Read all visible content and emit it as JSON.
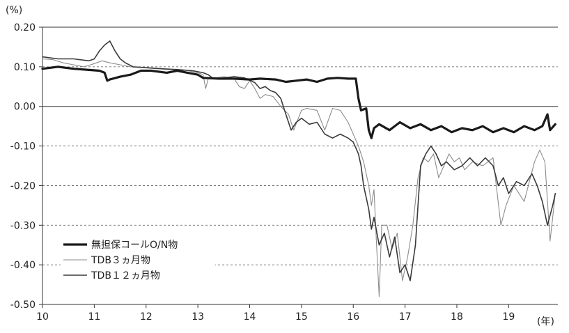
{
  "chart_data": {
    "type": "line",
    "title": "",
    "y_unit_label": "(%)",
    "x_unit_label": "(年)",
    "ylim": [
      -0.5,
      0.2
    ],
    "xlim": [
      10,
      19.95
    ],
    "y_ticks": [
      "0.20",
      "0.10",
      "0.00",
      "-0.10",
      "-0.20",
      "-0.30",
      "-0.40",
      "-0.50"
    ],
    "y_tick_values": [
      0.2,
      0.1,
      0.0,
      -0.1,
      -0.2,
      -0.3,
      -0.4,
      -0.5
    ],
    "x_ticks": [
      "10",
      "11",
      "12",
      "13",
      "14",
      "15",
      "16",
      "17",
      "18",
      "19"
    ],
    "x_tick_values": [
      10,
      11,
      12,
      13,
      14,
      15,
      16,
      17,
      18,
      19
    ],
    "grid": "horizontal dashed",
    "legend_position": "bottom-left",
    "series": [
      {
        "name": "無担保コールO/N物",
        "color": "#1a1a1a",
        "style": "thick",
        "points": [
          [
            10.0,
            0.095
          ],
          [
            10.3,
            0.1
          ],
          [
            10.6,
            0.095
          ],
          [
            10.9,
            0.092
          ],
          [
            11.1,
            0.09
          ],
          [
            11.2,
            0.085
          ],
          [
            11.25,
            0.065
          ],
          [
            11.3,
            0.068
          ],
          [
            11.5,
            0.075
          ],
          [
            11.7,
            0.08
          ],
          [
            11.9,
            0.09
          ],
          [
            12.1,
            0.09
          ],
          [
            12.4,
            0.085
          ],
          [
            12.6,
            0.09
          ],
          [
            12.8,
            0.085
          ],
          [
            13.0,
            0.08
          ],
          [
            13.1,
            0.072
          ],
          [
            13.4,
            0.07
          ],
          [
            13.7,
            0.07
          ],
          [
            14.0,
            0.068
          ],
          [
            14.2,
            0.07
          ],
          [
            14.5,
            0.068
          ],
          [
            14.7,
            0.062
          ],
          [
            14.9,
            0.065
          ],
          [
            15.1,
            0.068
          ],
          [
            15.3,
            0.062
          ],
          [
            15.5,
            0.07
          ],
          [
            15.7,
            0.072
          ],
          [
            15.9,
            0.07
          ],
          [
            16.05,
            0.07
          ],
          [
            16.1,
            0.02
          ],
          [
            16.15,
            -0.01
          ],
          [
            16.25,
            -0.005
          ],
          [
            16.3,
            -0.06
          ],
          [
            16.35,
            -0.08
          ],
          [
            16.4,
            -0.055
          ],
          [
            16.5,
            -0.045
          ],
          [
            16.7,
            -0.06
          ],
          [
            16.9,
            -0.04
          ],
          [
            17.1,
            -0.055
          ],
          [
            17.3,
            -0.045
          ],
          [
            17.5,
            -0.06
          ],
          [
            17.7,
            -0.05
          ],
          [
            17.9,
            -0.065
          ],
          [
            18.1,
            -0.055
          ],
          [
            18.3,
            -0.06
          ],
          [
            18.5,
            -0.05
          ],
          [
            18.7,
            -0.065
          ],
          [
            18.9,
            -0.055
          ],
          [
            19.1,
            -0.065
          ],
          [
            19.3,
            -0.05
          ],
          [
            19.5,
            -0.06
          ],
          [
            19.65,
            -0.05
          ],
          [
            19.75,
            -0.02
          ],
          [
            19.8,
            -0.06
          ],
          [
            19.9,
            -0.045
          ]
        ]
      },
      {
        "name": "TDB３ヵ月物",
        "color": "#8c8c8c",
        "style": "thin",
        "points": [
          [
            10.0,
            0.12
          ],
          [
            10.2,
            0.118
          ],
          [
            10.4,
            0.11
          ],
          [
            10.6,
            0.105
          ],
          [
            10.8,
            0.1
          ],
          [
            11.0,
            0.108
          ],
          [
            11.15,
            0.115
          ],
          [
            11.3,
            0.11
          ],
          [
            11.5,
            0.105
          ],
          [
            11.7,
            0.1
          ],
          [
            11.9,
            0.098
          ],
          [
            12.2,
            0.095
          ],
          [
            12.5,
            0.093
          ],
          [
            12.8,
            0.09
          ],
          [
            13.0,
            0.085
          ],
          [
            13.1,
            0.08
          ],
          [
            13.15,
            0.045
          ],
          [
            13.2,
            0.07
          ],
          [
            13.5,
            0.075
          ],
          [
            13.7,
            0.07
          ],
          [
            13.8,
            0.05
          ],
          [
            13.9,
            0.045
          ],
          [
            14.0,
            0.065
          ],
          [
            14.1,
            0.045
          ],
          [
            14.2,
            0.02
          ],
          [
            14.3,
            0.03
          ],
          [
            14.45,
            0.025
          ],
          [
            14.6,
            0.0
          ],
          [
            14.75,
            -0.02
          ],
          [
            14.85,
            -0.06
          ],
          [
            15.0,
            -0.01
          ],
          [
            15.1,
            -0.005
          ],
          [
            15.3,
            -0.01
          ],
          [
            15.45,
            -0.06
          ],
          [
            15.6,
            -0.005
          ],
          [
            15.75,
            -0.01
          ],
          [
            15.9,
            -0.04
          ],
          [
            16.0,
            -0.07
          ],
          [
            16.1,
            -0.1
          ],
          [
            16.2,
            -0.14
          ],
          [
            16.3,
            -0.2
          ],
          [
            16.35,
            -0.25
          ],
          [
            16.4,
            -0.21
          ],
          [
            16.45,
            -0.35
          ],
          [
            16.5,
            -0.48
          ],
          [
            16.55,
            -0.3
          ],
          [
            16.65,
            -0.3
          ],
          [
            16.75,
            -0.36
          ],
          [
            16.85,
            -0.32
          ],
          [
            16.95,
            -0.44
          ],
          [
            17.05,
            -0.38
          ],
          [
            17.15,
            -0.3
          ],
          [
            17.25,
            -0.18
          ],
          [
            17.35,
            -0.13
          ],
          [
            17.45,
            -0.14
          ],
          [
            17.55,
            -0.12
          ],
          [
            17.65,
            -0.18
          ],
          [
            17.75,
            -0.15
          ],
          [
            17.85,
            -0.12
          ],
          [
            17.95,
            -0.14
          ],
          [
            18.05,
            -0.13
          ],
          [
            18.15,
            -0.16
          ],
          [
            18.3,
            -0.14
          ],
          [
            18.5,
            -0.15
          ],
          [
            18.7,
            -0.13
          ],
          [
            18.85,
            -0.3
          ],
          [
            18.95,
            -0.25
          ],
          [
            19.1,
            -0.2
          ],
          [
            19.3,
            -0.24
          ],
          [
            19.5,
            -0.14
          ],
          [
            19.6,
            -0.11
          ],
          [
            19.7,
            -0.14
          ],
          [
            19.8,
            -0.34
          ],
          [
            19.85,
            -0.28
          ],
          [
            19.9,
            -0.22
          ]
        ]
      },
      {
        "name": "TDB１２ヵ月物",
        "color": "#3a3a3a",
        "style": "medium",
        "points": [
          [
            10.0,
            0.125
          ],
          [
            10.3,
            0.12
          ],
          [
            10.6,
            0.12
          ],
          [
            10.9,
            0.115
          ],
          [
            11.0,
            0.12
          ],
          [
            11.1,
            0.14
          ],
          [
            11.2,
            0.155
          ],
          [
            11.3,
            0.165
          ],
          [
            11.4,
            0.14
          ],
          [
            11.5,
            0.12
          ],
          [
            11.6,
            0.11
          ],
          [
            11.75,
            0.1
          ],
          [
            12.0,
            0.098
          ],
          [
            12.3,
            0.095
          ],
          [
            12.6,
            0.093
          ],
          [
            12.9,
            0.09
          ],
          [
            13.1,
            0.085
          ],
          [
            13.2,
            0.08
          ],
          [
            13.3,
            0.07
          ],
          [
            13.5,
            0.072
          ],
          [
            13.7,
            0.075
          ],
          [
            13.9,
            0.072
          ],
          [
            14.1,
            0.06
          ],
          [
            14.2,
            0.045
          ],
          [
            14.3,
            0.05
          ],
          [
            14.4,
            0.04
          ],
          [
            14.5,
            0.035
          ],
          [
            14.6,
            0.02
          ],
          [
            14.7,
            -0.02
          ],
          [
            14.8,
            -0.06
          ],
          [
            14.9,
            -0.04
          ],
          [
            15.0,
            -0.03
          ],
          [
            15.15,
            -0.045
          ],
          [
            15.3,
            -0.04
          ],
          [
            15.45,
            -0.07
          ],
          [
            15.6,
            -0.08
          ],
          [
            15.75,
            -0.07
          ],
          [
            15.9,
            -0.08
          ],
          [
            16.0,
            -0.09
          ],
          [
            16.1,
            -0.12
          ],
          [
            16.15,
            -0.15
          ],
          [
            16.2,
            -0.2
          ],
          [
            16.3,
            -0.26
          ],
          [
            16.35,
            -0.31
          ],
          [
            16.4,
            -0.28
          ],
          [
            16.5,
            -0.35
          ],
          [
            16.6,
            -0.32
          ],
          [
            16.7,
            -0.38
          ],
          [
            16.8,
            -0.33
          ],
          [
            16.9,
            -0.42
          ],
          [
            17.0,
            -0.4
          ],
          [
            17.1,
            -0.44
          ],
          [
            17.2,
            -0.35
          ],
          [
            17.3,
            -0.15
          ],
          [
            17.4,
            -0.12
          ],
          [
            17.5,
            -0.1
          ],
          [
            17.6,
            -0.12
          ],
          [
            17.7,
            -0.15
          ],
          [
            17.8,
            -0.14
          ],
          [
            17.95,
            -0.16
          ],
          [
            18.1,
            -0.15
          ],
          [
            18.25,
            -0.13
          ],
          [
            18.4,
            -0.15
          ],
          [
            18.55,
            -0.13
          ],
          [
            18.7,
            -0.15
          ],
          [
            18.8,
            -0.2
          ],
          [
            18.9,
            -0.18
          ],
          [
            19.0,
            -0.22
          ],
          [
            19.15,
            -0.19
          ],
          [
            19.3,
            -0.2
          ],
          [
            19.45,
            -0.17
          ],
          [
            19.55,
            -0.2
          ],
          [
            19.65,
            -0.24
          ],
          [
            19.75,
            -0.3
          ],
          [
            19.85,
            -0.25
          ],
          [
            19.9,
            -0.22
          ]
        ]
      }
    ]
  }
}
